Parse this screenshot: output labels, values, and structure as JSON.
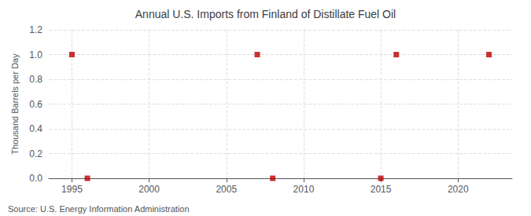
{
  "chart_data": {
    "type": "scatter",
    "title": "Annual U.S. Imports from Finland of Distillate Fuel Oil",
    "ylabel": "Thousand Barrels per Day",
    "annotations": [
      "Source: U.S. Energy Information Administration"
    ],
    "x": [
      1995,
      1996,
      2007,
      2008,
      2015,
      2016,
      2022
    ],
    "values": [
      1.0,
      0.0,
      1.0,
      0.0,
      0.0,
      1.0,
      1.0
    ],
    "color": "#bb0000",
    "marker": "square",
    "xlim": [
      1993.5,
      2023.5
    ],
    "xticks": [
      1995,
      2000,
      2005,
      2010,
      2015,
      2020
    ],
    "ylim": [
      0.0,
      1.2
    ],
    "yticks": [
      {
        "value": 0,
        "label": "0.0"
      },
      0.2,
      0.4,
      0.6,
      0.8,
      {
        "value": 1,
        "label": "1.0"
      },
      1.2
    ],
    "grid": true
  }
}
